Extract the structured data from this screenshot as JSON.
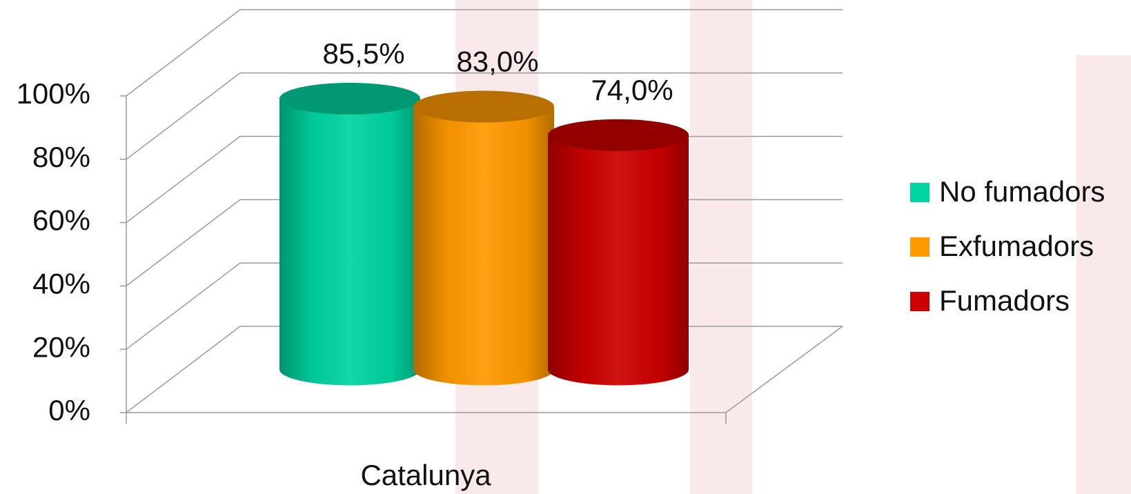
{
  "chart_data": {
    "type": "bar3d",
    "categories": [
      "Catalunya"
    ],
    "series": [
      {
        "name": "No fumadors",
        "color": "#00d4a0",
        "values": [
          85.5
        ],
        "value_labels": [
          "85,5%"
        ]
      },
      {
        "name": "Exfumadors",
        "color": "#ff9900",
        "values": [
          83.0
        ],
        "value_labels": [
          "83,0%"
        ]
      },
      {
        "name": "Fumadors",
        "color": "#cc0000",
        "values": [
          74.0
        ],
        "value_labels": [
          "74,0%"
        ]
      }
    ],
    "ylim": [
      0,
      100
    ],
    "yticks": [
      {
        "value": 0,
        "label": "0%"
      },
      {
        "value": 20,
        "label": "20%"
      },
      {
        "value": 40,
        "label": "40%"
      },
      {
        "value": 60,
        "label": "60%"
      },
      {
        "value": 80,
        "label": "80%"
      },
      {
        "value": 100,
        "label": "100%"
      }
    ],
    "grid": true,
    "legend": "right"
  }
}
